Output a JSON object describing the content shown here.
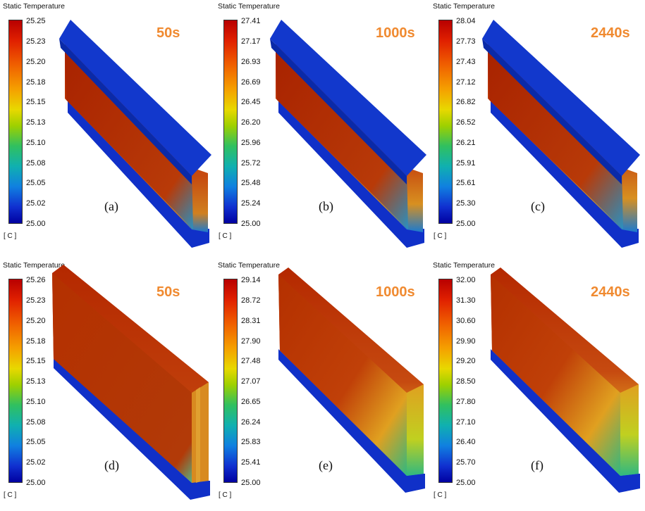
{
  "legend_title": "Static Temperature",
  "unit": "[ C ]",
  "colors": {
    "time_label": "#f08a30",
    "cold": "#1030c8",
    "hot": "#b42800"
  },
  "panels": [
    {
      "caption": "(a)",
      "time": "50s",
      "view": "top",
      "ticks": [
        "25.25",
        "25.23",
        "25.20",
        "25.18",
        "25.15",
        "25.13",
        "25.10",
        "25.08",
        "25.05",
        "25.02",
        "25.00"
      ]
    },
    {
      "caption": "(b)",
      "time": "1000s",
      "view": "top",
      "ticks": [
        "27.41",
        "27.17",
        "26.93",
        "26.69",
        "26.45",
        "26.20",
        "25.96",
        "25.72",
        "25.48",
        "25.24",
        "25.00"
      ]
    },
    {
      "caption": "(c)",
      "time": "2440s",
      "view": "top",
      "ticks": [
        "28.04",
        "27.73",
        "27.43",
        "27.12",
        "26.82",
        "26.52",
        "26.21",
        "25.91",
        "25.61",
        "25.30",
        "25.00"
      ]
    },
    {
      "caption": "(d)",
      "time": "50s",
      "view": "open",
      "ticks": [
        "25.26",
        "25.23",
        "25.20",
        "25.18",
        "25.15",
        "25.13",
        "25.10",
        "25.08",
        "25.05",
        "25.02",
        "25.00"
      ]
    },
    {
      "caption": "(e)",
      "time": "1000s",
      "view": "open",
      "ticks": [
        "29.14",
        "28.72",
        "28.31",
        "27.90",
        "27.48",
        "27.07",
        "26.65",
        "26.24",
        "25.83",
        "25.41",
        "25.00"
      ]
    },
    {
      "caption": "(f)",
      "time": "2440s",
      "view": "open",
      "ticks": [
        "32.00",
        "31.30",
        "30.60",
        "29.90",
        "29.20",
        "28.50",
        "27.80",
        "27.10",
        "26.40",
        "25.70",
        "25.00"
      ]
    }
  ]
}
